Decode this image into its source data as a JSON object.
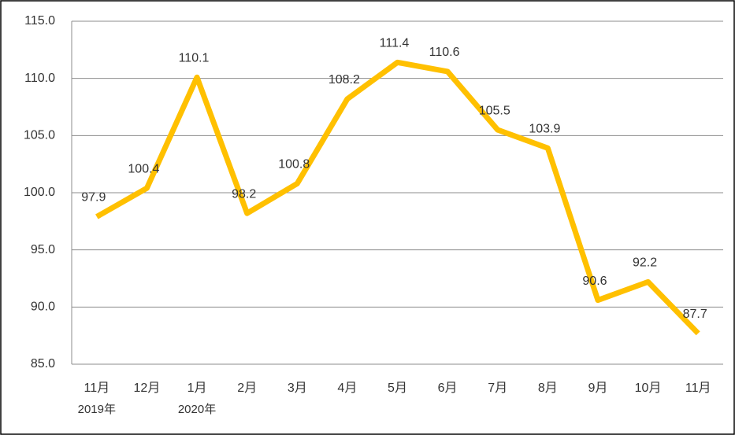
{
  "chart_data": {
    "type": "line",
    "categories": [
      "11月",
      "12月",
      "1月",
      "2月",
      "3月",
      "4月",
      "5月",
      "6月",
      "7月",
      "8月",
      "9月",
      "10月",
      "11月"
    ],
    "year_labels": [
      "2019年",
      null,
      "2020年",
      null,
      null,
      null,
      null,
      null,
      null,
      null,
      null,
      null,
      null
    ],
    "series": [
      {
        "name": null,
        "color": "#ffc000",
        "values": [
          97.9,
          100.4,
          110.1,
          98.2,
          100.8,
          108.2,
          111.4,
          110.6,
          105.5,
          103.9,
          90.6,
          92.2,
          87.7
        ]
      }
    ],
    "ylim": [
      85,
      115
    ],
    "yticks": [
      {
        "value": 85,
        "label": "85.0"
      },
      {
        "value": 90,
        "label": "90.0"
      },
      {
        "value": 95,
        "label": "95.0"
      },
      {
        "value": 100,
        "label": "100.0"
      },
      {
        "value": 105,
        "label": "105.0"
      },
      {
        "value": 110,
        "label": "110.0"
      },
      {
        "value": 115,
        "label": "115.0"
      }
    ],
    "grid": true
  }
}
